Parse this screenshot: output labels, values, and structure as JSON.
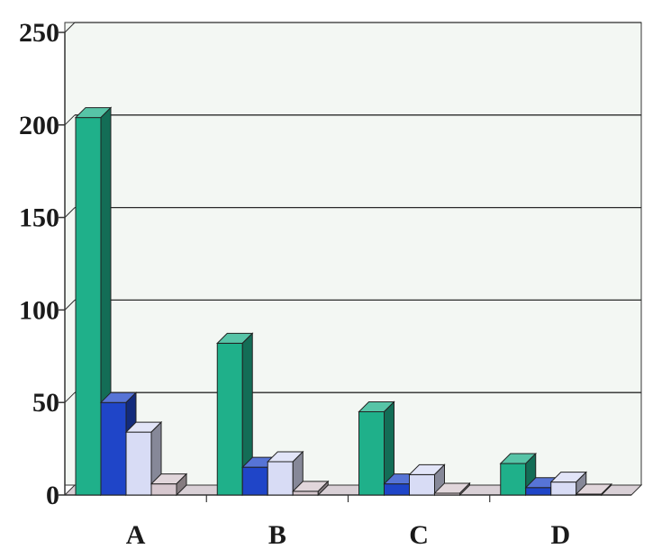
{
  "chart_data": {
    "type": "bar",
    "style": "3d-clustered",
    "title": "",
    "xlabel": "",
    "ylabel": "",
    "categories": [
      "A",
      "B",
      "C",
      "D"
    ],
    "y_ticks": [
      "0",
      "50",
      "100",
      "150",
      "200",
      "250"
    ],
    "ylim": [
      0,
      250
    ],
    "grid": true,
    "legend": "none",
    "series": [
      {
        "values": [
          204,
          82,
          45,
          17
        ],
        "color": "#1fb08a"
      },
      {
        "values": [
          50,
          15,
          6,
          4
        ],
        "color": "#1f45c8"
      },
      {
        "values": [
          34,
          18,
          11,
          7
        ],
        "color": "#d8dcf5"
      },
      {
        "values": [
          6,
          2,
          1,
          0.5
        ],
        "color": "#d7c8cf"
      }
    ],
    "colors": {
      "plot_background": "#f3f7f3",
      "gridline": "#2a2a2a",
      "axis": "#333333",
      "floor": "#d9d0d6"
    }
  }
}
